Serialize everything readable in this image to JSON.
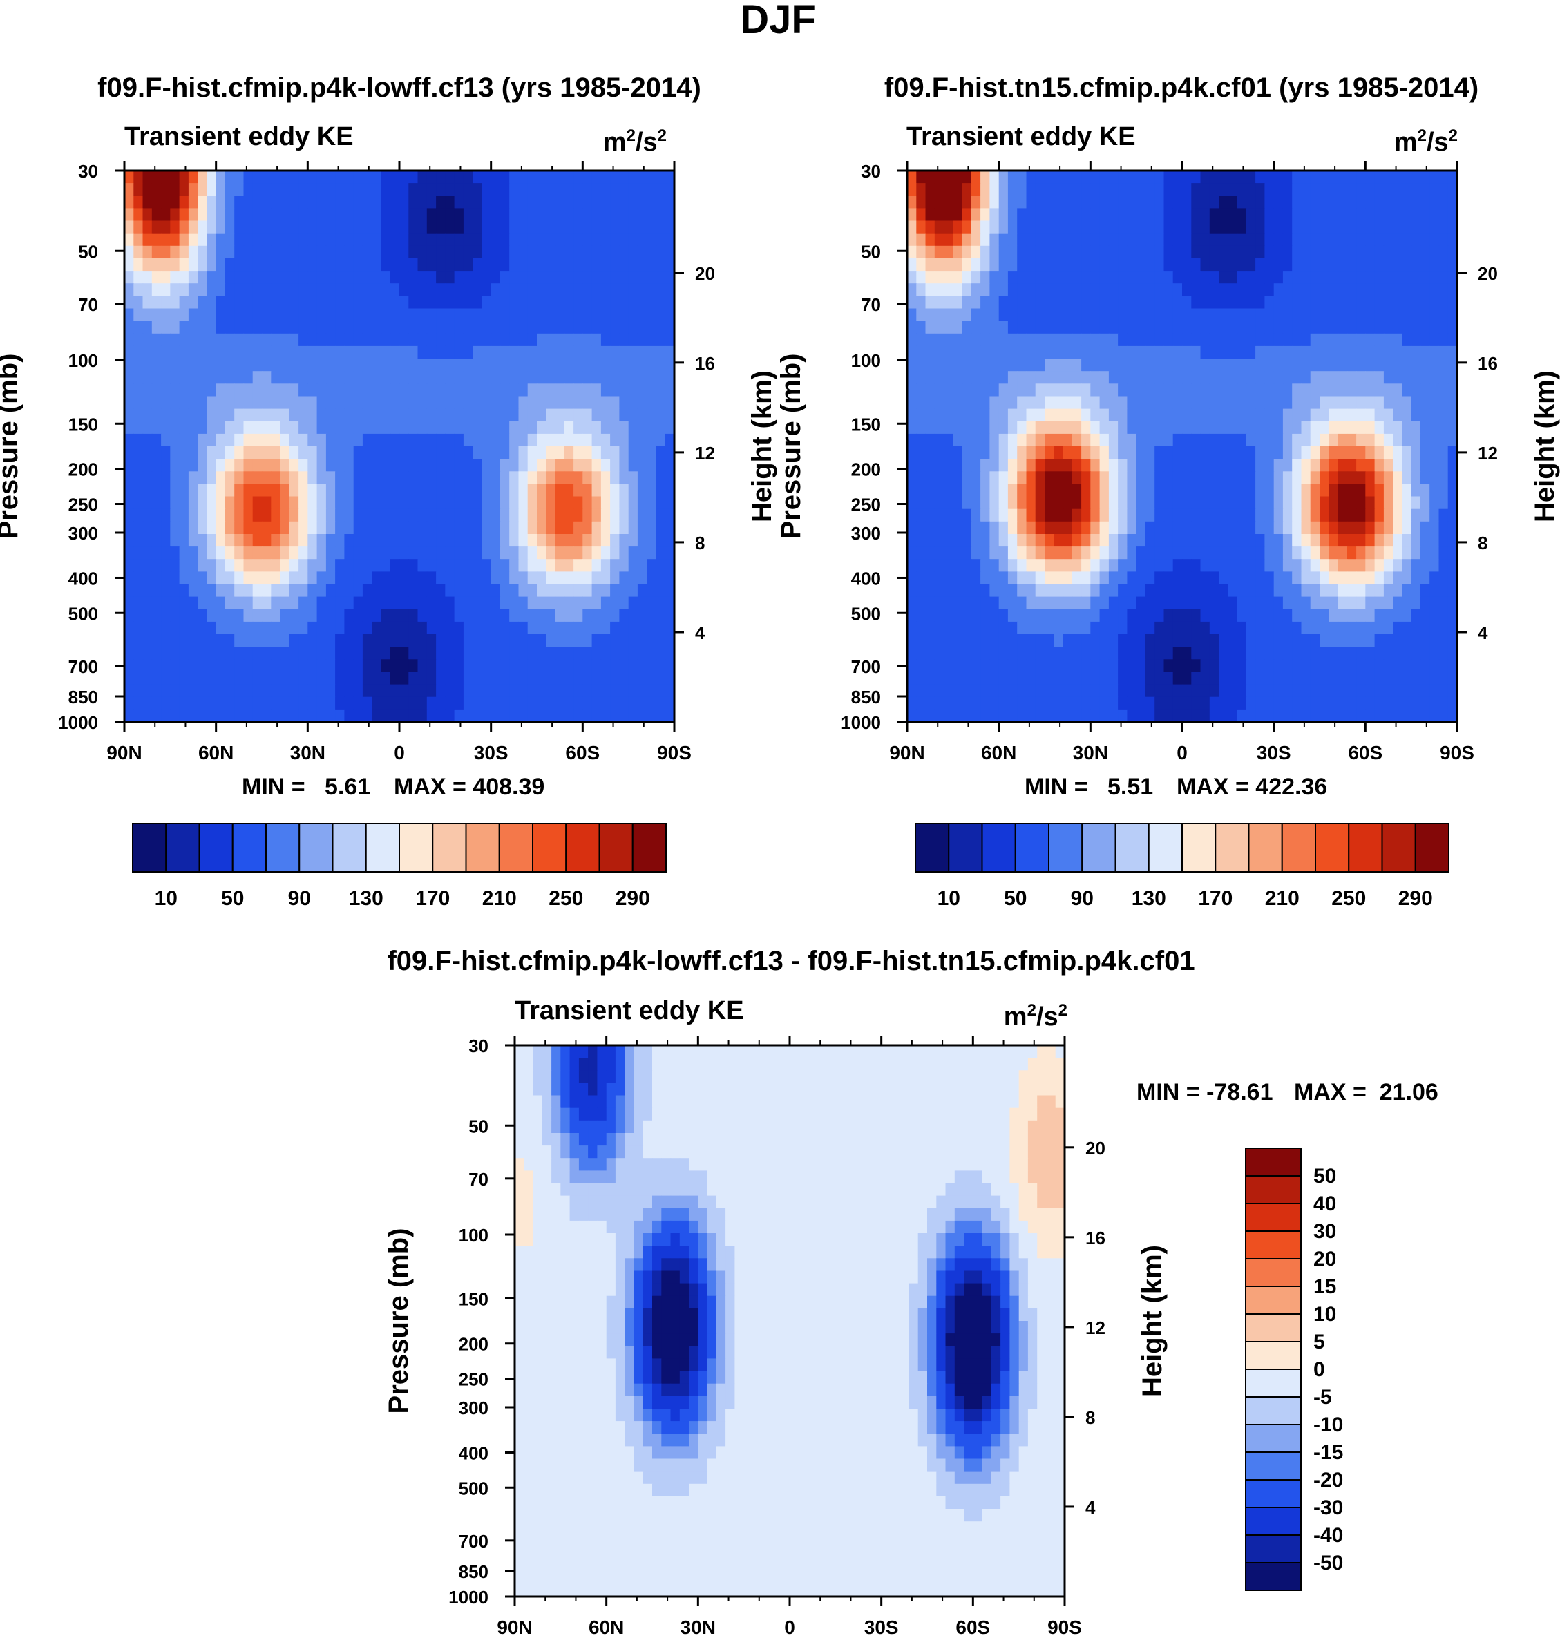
{
  "figure": {
    "title": "DJF"
  },
  "colors": {
    "abs_palette": [
      "#0a1172",
      "#0f25a8",
      "#1438d8",
      "#2354ec",
      "#4a7cf0",
      "#85a6f2",
      "#b8cdf8",
      "#deeafc",
      "#fde8d4",
      "#f9c7aa",
      "#f7a37a",
      "#f4784a",
      "#ee5020",
      "#d83010",
      "#b41e0c",
      "#840808"
    ],
    "diff_palette": [
      "#0a1172",
      "#0f25a8",
      "#1438d8",
      "#2354ec",
      "#4a7cf0",
      "#85a6f2",
      "#b8cdf8",
      "#deeafc",
      "#fde8d4",
      "#f9c7aa",
      "#f7a37a",
      "#f4784a",
      "#ee5020",
      "#d83010",
      "#b41e0c",
      "#840808"
    ]
  },
  "chart_data": [
    {
      "type": "heatmap",
      "title": "f09.F-hist.cfmip.p4k-lowff.cf13 (yrs 1985-2014)",
      "subtitle": "Transient eddy KE",
      "units": "m²/s²",
      "ylabel": "Pressure (mb)",
      "ylabel_right": "Height (km)",
      "x_ticks": [
        "90N",
        "60N",
        "30N",
        "0",
        "30S",
        "60S",
        "90S"
      ],
      "x_range": [
        -90,
        90
      ],
      "y_ticks": [
        "30",
        "50",
        "70",
        "100",
        "150",
        "200",
        "250",
        "300",
        "400",
        "500",
        "700",
        "850",
        "1000"
      ],
      "y_ticks_right": [
        "20",
        "16",
        "12",
        "8",
        "4"
      ],
      "y_range": [
        1000,
        30
      ],
      "y_scale": "log",
      "min_label": "MIN =   5.61",
      "max_label": "MAX = 408.39",
      "levels": [
        10,
        30,
        50,
        70,
        90,
        110,
        130,
        150,
        170,
        190,
        210,
        230,
        250,
        270,
        290
      ],
      "colorbar_labels": [
        "10",
        "50",
        "90",
        "130",
        "170",
        "210",
        "250",
        "290"
      ],
      "features": [
        {
          "lat": -78,
          "p": 30,
          "value": 360
        },
        {
          "lat": -45,
          "p": 260,
          "value": 260
        },
        {
          "lat": 55,
          "p": 260,
          "value": 245
        },
        {
          "lat": 15,
          "p": 40,
          "value": 5
        },
        {
          "lat": 0,
          "p": 700,
          "value": 6
        }
      ]
    },
    {
      "type": "heatmap",
      "title": "f09.F-hist.tn15.cfmip.p4k.cf01 (yrs 1985-2014)",
      "subtitle": "Transient eddy KE",
      "units": "m²/s²",
      "ylabel": "Pressure (mb)",
      "ylabel_right": "Height (km)",
      "x_ticks": [
        "90N",
        "60N",
        "30N",
        "0",
        "30S",
        "60S",
        "90S"
      ],
      "x_range": [
        -90,
        90
      ],
      "y_ticks": [
        "30",
        "50",
        "70",
        "100",
        "150",
        "200",
        "250",
        "300",
        "400",
        "500",
        "700",
        "850",
        "1000"
      ],
      "y_ticks_right": [
        "20",
        "16",
        "12",
        "8",
        "4"
      ],
      "y_range": [
        1000,
        30
      ],
      "y_scale": "log",
      "min_label": "MIN =   5.51",
      "max_label": "MAX = 422.36",
      "levels": [
        10,
        30,
        50,
        70,
        90,
        110,
        130,
        150,
        170,
        190,
        210,
        230,
        250,
        270,
        290
      ],
      "colorbar_labels": [
        "10",
        "50",
        "90",
        "130",
        "170",
        "210",
        "250",
        "290"
      ],
      "features": [
        {
          "lat": -78,
          "p": 30,
          "value": 370
        },
        {
          "lat": -40,
          "p": 240,
          "value": 320
        },
        {
          "lat": 55,
          "p": 250,
          "value": 310
        },
        {
          "lat": 15,
          "p": 40,
          "value": 5
        },
        {
          "lat": 0,
          "p": 700,
          "value": 6
        }
      ]
    },
    {
      "type": "heatmap",
      "title": "f09.F-hist.cfmip.p4k-lowff.cf13 - f09.F-hist.tn15.cfmip.p4k.cf01",
      "subtitle": "Transient eddy KE",
      "units": "m²/s²",
      "ylabel": "Pressure (mb)",
      "ylabel_right": "Height (km)",
      "x_ticks": [
        "90N",
        "60N",
        "30N",
        "0",
        "30S",
        "60S",
        "90S"
      ],
      "x_range": [
        -90,
        90
      ],
      "y_ticks": [
        "30",
        "50",
        "70",
        "100",
        "150",
        "200",
        "250",
        "300",
        "400",
        "500",
        "700",
        "850",
        "1000"
      ],
      "y_ticks_right": [
        "20",
        "16",
        "12",
        "8",
        "4"
      ],
      "y_range": [
        1000,
        30
      ],
      "y_scale": "log",
      "min_label": "MIN = -78.61",
      "max_label": "MAX =  21.06",
      "levels": [
        -50,
        -40,
        -30,
        -20,
        -15,
        -10,
        -5,
        0,
        5,
        10,
        15,
        20,
        30,
        40,
        50
      ],
      "colorbar_labels": [
        "50",
        "40",
        "30",
        "20",
        "15",
        "10",
        "5",
        "0",
        "-5",
        "-10",
        "-15",
        "-20",
        "-30",
        "-40",
        "-50"
      ],
      "features": [
        {
          "lat": -38,
          "p": 180,
          "value": -70
        },
        {
          "lat": 60,
          "p": 200,
          "value": -75
        },
        {
          "lat": -65,
          "p": 35,
          "value": -40
        },
        {
          "lat": 85,
          "p": 60,
          "value": 12
        },
        {
          "lat": -88,
          "p": 80,
          "value": 4
        },
        {
          "lat": 0,
          "p": 160,
          "value": 2
        }
      ]
    }
  ]
}
